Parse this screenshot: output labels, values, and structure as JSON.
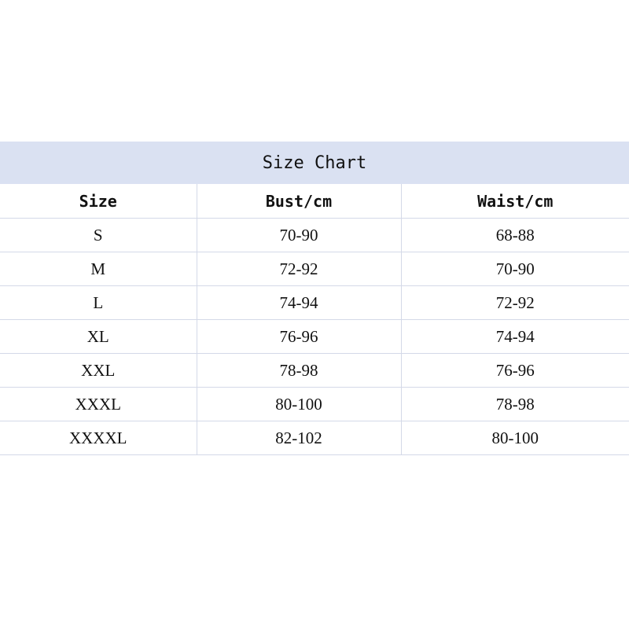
{
  "title": "Size Chart",
  "colors": {
    "header_band": "#dae1f2",
    "grid": "#d4d9e8"
  },
  "columns": [
    "Size",
    "Bust/cm",
    "Waist/cm"
  ],
  "rows": [
    [
      "S",
      "70-90",
      "68-88"
    ],
    [
      "M",
      "72-92",
      "70-90"
    ],
    [
      "L",
      "74-94",
      "72-92"
    ],
    [
      "XL",
      "76-96",
      "74-94"
    ],
    [
      "XXL",
      "78-98",
      "76-96"
    ],
    [
      "XXXL",
      "80-100",
      "78-98"
    ],
    [
      "XXXXL",
      "82-102",
      "80-100"
    ]
  ]
}
